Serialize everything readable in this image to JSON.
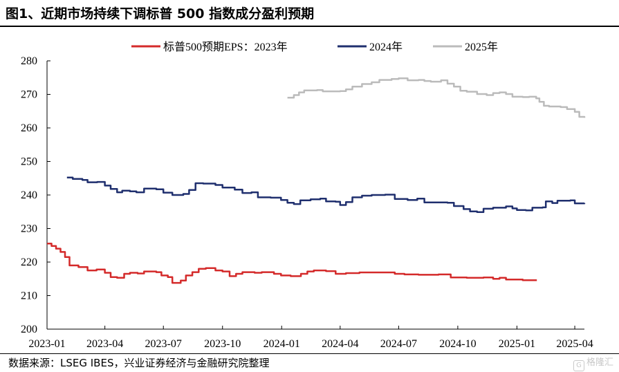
{
  "title": "图1、近期市场持续下调标普 500 指数成分盈利预期",
  "source": "数据来源：LSEG IBES，兴业证券经济与金融研究院整理",
  "watermark": "格隆汇",
  "chart_data": {
    "type": "line",
    "title": "",
    "xlabel": "",
    "ylabel": "",
    "ylim": [
      200,
      280
    ],
    "yticks": [
      200,
      210,
      220,
      230,
      240,
      250,
      260,
      270,
      280
    ],
    "xlim": [
      "2023-01-01",
      "2025-04-16"
    ],
    "xticks": [
      "2023-01",
      "2023-04",
      "2023-07",
      "2023-10",
      "2024-01",
      "2024-04",
      "2024-07",
      "2024-10",
      "2025-01",
      "2025-04"
    ],
    "legend_position": "top",
    "series": [
      {
        "name": "标普500预期EPS：2023年",
        "color": "#d42a2a",
        "points": [
          [
            "2023-01-01",
            225.5
          ],
          [
            "2023-01-08",
            224.8
          ],
          [
            "2023-01-15",
            224.0
          ],
          [
            "2023-01-22",
            223.0
          ],
          [
            "2023-01-29",
            221.5
          ],
          [
            "2023-02-05",
            219.0
          ],
          [
            "2023-02-19",
            218.5
          ],
          [
            "2023-03-05",
            217.5
          ],
          [
            "2023-03-19",
            217.8
          ],
          [
            "2023-04-01",
            216.8
          ],
          [
            "2023-04-10",
            215.5
          ],
          [
            "2023-04-20",
            215.3
          ],
          [
            "2023-05-01",
            216.5
          ],
          [
            "2023-05-10",
            216.8
          ],
          [
            "2023-05-22",
            216.6
          ],
          [
            "2023-06-01",
            217.2
          ],
          [
            "2023-06-20",
            217.0
          ],
          [
            "2023-06-28",
            216.0
          ],
          [
            "2023-07-08",
            215.5
          ],
          [
            "2023-07-15",
            213.8
          ],
          [
            "2023-07-28",
            214.5
          ],
          [
            "2023-08-05",
            216.0
          ],
          [
            "2023-08-15",
            217.0
          ],
          [
            "2023-08-25",
            218.0
          ],
          [
            "2023-09-05",
            218.2
          ],
          [
            "2023-09-20",
            217.5
          ],
          [
            "2023-10-01",
            217.2
          ],
          [
            "2023-10-12",
            215.8
          ],
          [
            "2023-10-22",
            216.5
          ],
          [
            "2023-11-01",
            217.0
          ],
          [
            "2023-11-20",
            216.8
          ],
          [
            "2023-12-01",
            217.0
          ],
          [
            "2023-12-20",
            216.5
          ],
          [
            "2023-12-31",
            216.0
          ],
          [
            "2024-01-15",
            215.8
          ],
          [
            "2024-01-31",
            216.5
          ],
          [
            "2024-02-10",
            217.2
          ],
          [
            "2024-02-20",
            217.5
          ],
          [
            "2024-03-10",
            217.3
          ],
          [
            "2024-03-25",
            216.5
          ],
          [
            "2024-04-10",
            216.7
          ],
          [
            "2024-05-01",
            216.9
          ],
          [
            "2024-06-01",
            216.9
          ],
          [
            "2024-06-25",
            216.5
          ],
          [
            "2024-07-10",
            216.3
          ],
          [
            "2024-08-01",
            216.2
          ],
          [
            "2024-09-01",
            216.3
          ],
          [
            "2024-09-20",
            215.4
          ],
          [
            "2024-10-15",
            215.3
          ],
          [
            "2024-11-10",
            215.4
          ],
          [
            "2024-11-25",
            215.0
          ],
          [
            "2024-12-05",
            215.3
          ],
          [
            "2024-12-15",
            214.8
          ],
          [
            "2025-01-10",
            214.6
          ],
          [
            "2025-02-01",
            214.6
          ]
        ]
      },
      {
        "name": "2024年",
        "color": "#1f2f6e",
        "points": [
          [
            "2023-02-01",
            245.2
          ],
          [
            "2023-02-10",
            244.8
          ],
          [
            "2023-02-25",
            244.5
          ],
          [
            "2023-03-05",
            243.8
          ],
          [
            "2023-03-20",
            243.9
          ],
          [
            "2023-04-01",
            242.8
          ],
          [
            "2023-04-10",
            241.8
          ],
          [
            "2023-04-20",
            240.8
          ],
          [
            "2023-04-28",
            241.3
          ],
          [
            "2023-05-10",
            241.1
          ],
          [
            "2023-05-20",
            240.8
          ],
          [
            "2023-06-01",
            241.9
          ],
          [
            "2023-06-20",
            241.7
          ],
          [
            "2023-07-01",
            240.7
          ],
          [
            "2023-07-15",
            240.0
          ],
          [
            "2023-08-01",
            240.3
          ],
          [
            "2023-08-10",
            241.5
          ],
          [
            "2023-08-20",
            243.5
          ],
          [
            "2023-09-01",
            243.4
          ],
          [
            "2023-09-20",
            243.0
          ],
          [
            "2023-10-01",
            242.2
          ],
          [
            "2023-10-20",
            241.6
          ],
          [
            "2023-11-01",
            240.6
          ],
          [
            "2023-11-15",
            240.8
          ],
          [
            "2023-11-25",
            239.3
          ],
          [
            "2023-12-15",
            239.2
          ],
          [
            "2023-12-31",
            238.5
          ],
          [
            "2024-01-10",
            237.7
          ],
          [
            "2024-01-20",
            237.3
          ],
          [
            "2024-01-30",
            238.4
          ],
          [
            "2024-02-15",
            238.7
          ],
          [
            "2024-03-01",
            238.9
          ],
          [
            "2024-03-10",
            238.1
          ],
          [
            "2024-03-25",
            238.0
          ],
          [
            "2024-04-01",
            237.0
          ],
          [
            "2024-04-10",
            237.9
          ],
          [
            "2024-04-20",
            239.3
          ],
          [
            "2024-05-05",
            239.8
          ],
          [
            "2024-05-20",
            240.0
          ],
          [
            "2024-06-10",
            240.1
          ],
          [
            "2024-06-25",
            238.8
          ],
          [
            "2024-07-15",
            238.5
          ],
          [
            "2024-07-30",
            238.9
          ],
          [
            "2024-08-10",
            237.8
          ],
          [
            "2024-09-15",
            237.7
          ],
          [
            "2024-09-25",
            236.7
          ],
          [
            "2024-10-10",
            235.8
          ],
          [
            "2024-10-20",
            235.1
          ],
          [
            "2024-10-31",
            234.9
          ],
          [
            "2024-11-10",
            235.9
          ],
          [
            "2024-11-25",
            236.2
          ],
          [
            "2024-12-15",
            236.6
          ],
          [
            "2024-12-25",
            236.0
          ],
          [
            "2025-01-01",
            235.5
          ],
          [
            "2025-01-15",
            235.4
          ],
          [
            "2025-01-25",
            236.2
          ],
          [
            "2025-02-10",
            236.3
          ],
          [
            "2025-02-15",
            238.1
          ],
          [
            "2025-02-25",
            237.6
          ],
          [
            "2025-03-05",
            238.3
          ],
          [
            "2025-03-25",
            238.4
          ],
          [
            "2025-04-01",
            237.5
          ],
          [
            "2025-04-16",
            237.6
          ]
        ]
      },
      {
        "name": "2025年",
        "color": "#bbbbbb",
        "points": [
          [
            "2024-01-10",
            269.0
          ],
          [
            "2024-01-20",
            269.8
          ],
          [
            "2024-01-28",
            270.6
          ],
          [
            "2024-02-05",
            271.2
          ],
          [
            "2024-02-25",
            271.3
          ],
          [
            "2024-03-05",
            270.9
          ],
          [
            "2024-04-01",
            271.0
          ],
          [
            "2024-04-10",
            271.5
          ],
          [
            "2024-04-20",
            272.3
          ],
          [
            "2024-05-05",
            273.1
          ],
          [
            "2024-05-20",
            273.6
          ],
          [
            "2024-06-01",
            274.3
          ],
          [
            "2024-06-20",
            274.6
          ],
          [
            "2024-07-01",
            274.8
          ],
          [
            "2024-07-15",
            274.2
          ],
          [
            "2024-08-01",
            274.3
          ],
          [
            "2024-08-10",
            274.0
          ],
          [
            "2024-08-20",
            273.8
          ],
          [
            "2024-09-05",
            274.2
          ],
          [
            "2024-09-15",
            273.2
          ],
          [
            "2024-09-25",
            272.3
          ],
          [
            "2024-10-05",
            271.1
          ],
          [
            "2024-10-15",
            270.8
          ],
          [
            "2024-10-31",
            270.1
          ],
          [
            "2024-11-15",
            269.8
          ],
          [
            "2024-11-25",
            270.4
          ],
          [
            "2024-12-05",
            270.6
          ],
          [
            "2024-12-15",
            270.1
          ],
          [
            "2024-12-25",
            269.3
          ],
          [
            "2025-01-10",
            269.2
          ],
          [
            "2025-01-20",
            269.3
          ],
          [
            "2025-01-31",
            268.8
          ],
          [
            "2025-02-05",
            267.8
          ],
          [
            "2025-02-12",
            266.6
          ],
          [
            "2025-02-20",
            266.4
          ],
          [
            "2025-03-10",
            266.2
          ],
          [
            "2025-03-20",
            265.6
          ],
          [
            "2025-04-01",
            264.8
          ],
          [
            "2025-04-08",
            263.3
          ],
          [
            "2025-04-16",
            263.0
          ]
        ]
      }
    ]
  }
}
